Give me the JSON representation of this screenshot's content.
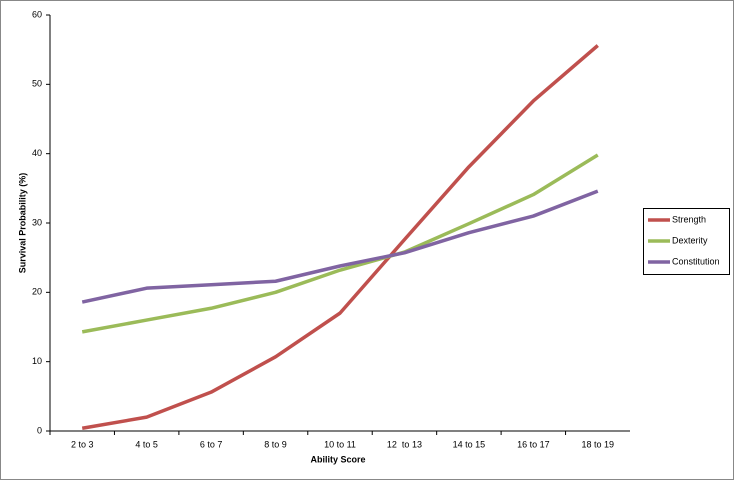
{
  "chart_data": {
    "type": "line",
    "x_label": "Ability Score",
    "y_label": "Survival Probability (%)",
    "categories": [
      "2 to 3",
      "4 to 5",
      "6 to 7",
      "8 to 9",
      "10 to 11",
      "12  to 13",
      "14 to 15",
      "16 to 17",
      "18 to 19"
    ],
    "series": [
      {
        "name": "Strength",
        "color": "#c0504d",
        "values": [
          0.4,
          2.0,
          5.6,
          10.7,
          17.0,
          27.6,
          38.1,
          47.6,
          55.6
        ]
      },
      {
        "name": "Dexterity",
        "color": "#9bbb59",
        "values": [
          14.3,
          16.0,
          17.7,
          20.0,
          23.2,
          25.8,
          29.9,
          34.1,
          39.8
        ]
      },
      {
        "name": "Constitution",
        "color": "#8064a2",
        "values": [
          18.6,
          20.6,
          21.1,
          21.6,
          23.8,
          25.7,
          28.6,
          31.0,
          34.6
        ]
      }
    ],
    "ylim": [
      0,
      60
    ],
    "yticks": [
      0,
      10,
      20,
      30,
      40,
      50,
      60
    ],
    "grid": false,
    "legend": "right"
  }
}
